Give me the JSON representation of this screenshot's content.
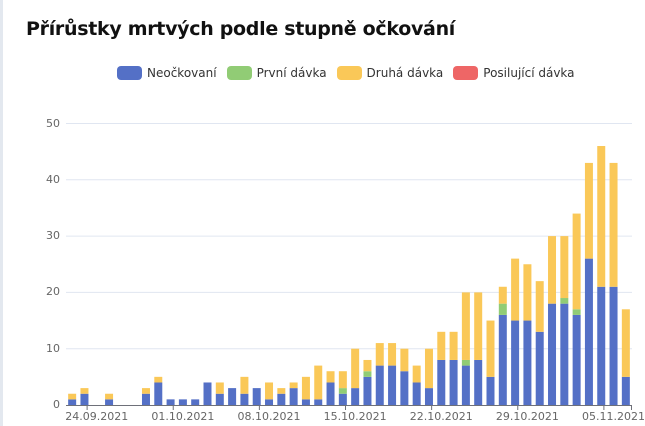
{
  "title": "Přírůstky mrtvých podle stupně očkování",
  "legend": [
    {
      "label": "Neočkovaní",
      "color": "#5470c6"
    },
    {
      "label": "První dávka",
      "color": "#91cc75"
    },
    {
      "label": "Druhá dávka",
      "color": "#fac858"
    },
    {
      "label": "Posilující dávka",
      "color": "#ee6666"
    }
  ],
  "y_ticks": [
    "0",
    "10",
    "20",
    "30",
    "40",
    "50"
  ],
  "x_labels": [
    {
      "label": "24.09.2021",
      "index": 2
    },
    {
      "label": "01.10.2021",
      "index": 9
    },
    {
      "label": "08.10.2021",
      "index": 16
    },
    {
      "label": "15.10.2021",
      "index": 23
    },
    {
      "label": "22.10.2021",
      "index": 30
    },
    {
      "label": "29.10.2021",
      "index": 37
    },
    {
      "label": "05.11.2021",
      "index": 44
    }
  ],
  "chart_data": {
    "type": "bar",
    "stacked": true,
    "title": "Přírůstky mrtvých podle stupně očkování",
    "xlabel": "",
    "ylabel": "",
    "ylim": [
      0,
      50
    ],
    "grid": true,
    "legend_position": "top",
    "categories": [
      "22.09.2021",
      "23.09.2021",
      "24.09.2021",
      "25.09.2021",
      "26.09.2021",
      "27.09.2021",
      "28.09.2021",
      "29.09.2021",
      "30.09.2021",
      "01.10.2021",
      "02.10.2021",
      "03.10.2021",
      "04.10.2021",
      "05.10.2021",
      "06.10.2021",
      "07.10.2021",
      "08.10.2021",
      "09.10.2021",
      "10.10.2021",
      "11.10.2021",
      "12.10.2021",
      "13.10.2021",
      "14.10.2021",
      "15.10.2021",
      "16.10.2021",
      "17.10.2021",
      "18.10.2021",
      "19.10.2021",
      "20.10.2021",
      "21.10.2021",
      "22.10.2021",
      "23.10.2021",
      "24.10.2021",
      "25.10.2021",
      "26.10.2021",
      "27.10.2021",
      "28.10.2021",
      "29.10.2021",
      "30.10.2021",
      "31.10.2021",
      "01.11.2021",
      "02.11.2021",
      "03.11.2021",
      "04.11.2021",
      "05.11.2021",
      "06.11.2021"
    ],
    "series": [
      {
        "name": "Neočkovaní",
        "color": "#5470c6",
        "values": [
          1,
          2,
          0,
          1,
          0,
          0,
          2,
          4,
          1,
          1,
          1,
          4,
          2,
          3,
          2,
          3,
          1,
          2,
          3,
          1,
          1,
          4,
          2,
          3,
          5,
          7,
          7,
          6,
          4,
          3,
          8,
          8,
          7,
          8,
          5,
          16,
          15,
          15,
          13,
          18,
          18,
          16,
          26,
          21,
          21,
          5
        ]
      },
      {
        "name": "První dávka",
        "color": "#91cc75",
        "values": [
          0,
          0,
          0,
          0,
          0,
          0,
          0,
          0,
          0,
          0,
          0,
          0,
          0,
          0,
          0,
          0,
          0,
          0,
          0,
          0,
          0,
          0,
          1,
          0,
          1,
          0,
          0,
          0,
          0,
          0,
          0,
          0,
          1,
          0,
          0,
          2,
          0,
          0,
          0,
          0,
          1,
          1,
          0,
          0,
          0,
          0
        ]
      },
      {
        "name": "Druhá dávka",
        "color": "#fac858",
        "values": [
          1,
          1,
          0,
          1,
          0,
          0,
          1,
          1,
          0,
          0,
          0,
          0,
          2,
          0,
          3,
          0,
          3,
          1,
          1,
          4,
          6,
          2,
          3,
          7,
          2,
          4,
          4,
          4,
          3,
          7,
          5,
          5,
          12,
          12,
          10,
          3,
          11,
          10,
          9,
          12,
          11,
          17,
          17,
          25,
          22,
          12
        ]
      },
      {
        "name": "Posilující dávka",
        "color": "#ee6666",
        "values": [
          0,
          0,
          0,
          0,
          0,
          0,
          0,
          0,
          0,
          0,
          0,
          0,
          0,
          0,
          0,
          0,
          0,
          0,
          0,
          0,
          0,
          0,
          0,
          0,
          0,
          0,
          0,
          0,
          0,
          0,
          0,
          0,
          0,
          0,
          0,
          0,
          0,
          0,
          0,
          0,
          0,
          0,
          0,
          0,
          0,
          0
        ]
      }
    ]
  }
}
